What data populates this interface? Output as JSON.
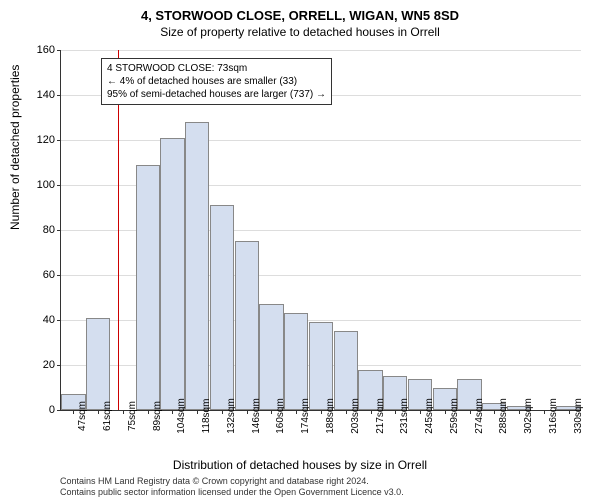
{
  "title": "4, STORWOOD CLOSE, ORRELL, WIGAN, WN5 8SD",
  "subtitle": "Size of property relative to detached houses in Orrell",
  "ylabel": "Number of detached properties",
  "xlabel": "Distribution of detached houses by size in Orrell",
  "annotation": {
    "line1": "4 STORWOOD CLOSE: 73sqm",
    "line2": "← 4% of detached houses are smaller (33)",
    "line3": "95% of semi-detached houses are larger (737) →"
  },
  "footer": {
    "line1": "Contains HM Land Registry data © Crown copyright and database right 2024.",
    "line2": "Contains public sector information licensed under the Open Government Licence v3.0."
  },
  "chart": {
    "type": "bar",
    "ylim": [
      0,
      160
    ],
    "ytick_step": 20,
    "bar_color": "#d4deef",
    "bar_border": "#888888",
    "grid_color": "#dddddd",
    "marker_color": "#cc0000",
    "marker_x": 73,
    "x_start": 40,
    "x_step": 14.3,
    "categories": [
      "47sqm",
      "61sqm",
      "75sqm",
      "89sqm",
      "104sqm",
      "118sqm",
      "132sqm",
      "146sqm",
      "160sqm",
      "174sqm",
      "188sqm",
      "203sqm",
      "217sqm",
      "231sqm",
      "245sqm",
      "259sqm",
      "274sqm",
      "288sqm",
      "302sqm",
      "316sqm",
      "330sqm"
    ],
    "values": [
      7,
      41,
      0,
      109,
      121,
      128,
      91,
      75,
      47,
      43,
      39,
      35,
      18,
      15,
      14,
      10,
      14,
      3,
      2,
      0,
      2
    ]
  },
  "styling": {
    "background_color": "#ffffff",
    "title_fontsize": 13,
    "subtitle_fontsize": 12,
    "label_fontsize": 12,
    "tick_fontsize": 11,
    "annotation_fontsize": 10,
    "footer_fontsize": 9
  }
}
